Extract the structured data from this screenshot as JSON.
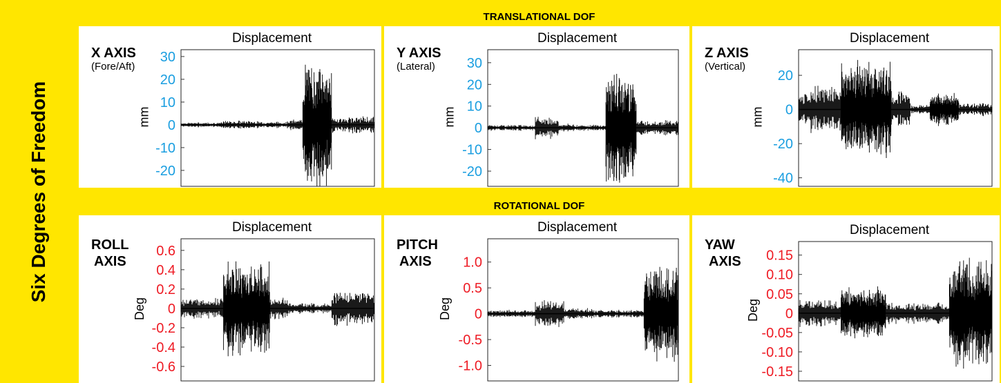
{
  "sidebar": {
    "title": "Six Degrees of Freedom"
  },
  "bands": {
    "translational": "TRANSLATIONAL DOF",
    "rotational": "ROTATIONAL DOF"
  },
  "colors": {
    "yellow": "#ffe600",
    "tick_blue": "#1a9ee0",
    "tick_red": "#ee1b24",
    "signal": "#000000"
  },
  "chart_data": [
    {
      "type": "line",
      "title": "Displacement",
      "axis_name": "X AXIS",
      "axis_sub": "(Fore/Aft)",
      "ylabel": "mm",
      "ylim": [
        -27,
        33
      ],
      "yticks": [
        30,
        20,
        10,
        0,
        -10,
        -20
      ],
      "ytick_labels": [
        "30",
        "20",
        "10",
        "0",
        "-10",
        "-20"
      ],
      "tick_color": "blue",
      "segments": [
        {
          "x0": 0.0,
          "x1": 0.22,
          "amp": 1.2
        },
        {
          "x0": 0.22,
          "x1": 0.4,
          "amp": 2.0
        },
        {
          "x0": 0.4,
          "x1": 0.55,
          "amp": 1.5
        },
        {
          "x0": 0.55,
          "x1": 0.63,
          "amp": 2.5
        },
        {
          "x0": 0.63,
          "x1": 0.78,
          "amp": 30,
          "dense": true
        },
        {
          "x0": 0.78,
          "x1": 0.87,
          "amp": 3.5
        },
        {
          "x0": 0.87,
          "x1": 1.0,
          "amp": 4.0
        }
      ]
    },
    {
      "type": "line",
      "title": "Displacement",
      "axis_name": "Y AXIS",
      "axis_sub": "(Lateral)",
      "ylabel": "mm",
      "ylim": [
        -27,
        36
      ],
      "yticks": [
        30,
        20,
        10,
        0,
        -10,
        -20
      ],
      "ytick_labels": [
        "30",
        "20",
        "10",
        "0",
        "-10",
        "-20"
      ],
      "tick_color": "blue",
      "segments": [
        {
          "x0": 0.0,
          "x1": 0.25,
          "amp": 1.5
        },
        {
          "x0": 0.25,
          "x1": 0.37,
          "amp": 5.5
        },
        {
          "x0": 0.37,
          "x1": 0.45,
          "amp": 2.0
        },
        {
          "x0": 0.45,
          "x1": 0.62,
          "amp": 1.5
        },
        {
          "x0": 0.62,
          "x1": 0.78,
          "amp": 28,
          "dense": true
        },
        {
          "x0": 0.78,
          "x1": 1.0,
          "amp": 4.0
        }
      ]
    },
    {
      "type": "line",
      "title": "Displacement",
      "axis_name": "Z AXIS",
      "axis_sub": "(Vertical)",
      "ylabel": "mm",
      "ylim": [
        -45,
        35
      ],
      "yticks": [
        20,
        0,
        -20,
        -40
      ],
      "ytick_labels": [
        "20",
        "0",
        "-20",
        "-40"
      ],
      "tick_color": "blue",
      "segments": [
        {
          "x0": 0.0,
          "x1": 0.05,
          "amp": 10
        },
        {
          "x0": 0.05,
          "x1": 0.22,
          "amp": 15
        },
        {
          "x0": 0.22,
          "x1": 0.48,
          "amp": 30,
          "dense": true
        },
        {
          "x0": 0.48,
          "x1": 0.58,
          "amp": 12
        },
        {
          "x0": 0.58,
          "x1": 0.68,
          "amp": 3
        },
        {
          "x0": 0.68,
          "x1": 0.83,
          "amp": 10,
          "dense": true
        },
        {
          "x0": 0.83,
          "x1": 1.0,
          "amp": 4
        }
      ]
    },
    {
      "type": "line",
      "title": "Displacement",
      "axis_name": "ROLL",
      "axis_sub2": "AXIS",
      "ylabel": "Deg",
      "ylim": [
        -0.75,
        0.72
      ],
      "yticks": [
        0.6,
        0.4,
        0.2,
        0,
        -0.2,
        -0.4,
        -0.6
      ],
      "ytick_labels": [
        "0.6",
        "0.4",
        "0.2",
        "0",
        "-0.2",
        "-0.4",
        "-0.6"
      ],
      "tick_color": "red",
      "segments": [
        {
          "x0": 0.0,
          "x1": 0.22,
          "amp": 0.12
        },
        {
          "x0": 0.22,
          "x1": 0.46,
          "amp": 0.5,
          "dense": true
        },
        {
          "x0": 0.46,
          "x1": 0.55,
          "amp": 0.12
        },
        {
          "x0": 0.55,
          "x1": 0.78,
          "amp": 0.06
        },
        {
          "x0": 0.78,
          "x1": 1.0,
          "amp": 0.2
        }
      ]
    },
    {
      "type": "line",
      "title": "Displacement",
      "axis_name": "PITCH",
      "axis_sub2": "AXIS",
      "ylabel": "Deg",
      "ylim": [
        -1.3,
        1.45
      ],
      "yticks": [
        1.0,
        0.5,
        0,
        -0.5,
        -1.0
      ],
      "ytick_labels": [
        "1.0",
        "0.5",
        "0",
        "-0.5",
        "-1.0"
      ],
      "tick_color": "red",
      "segments": [
        {
          "x0": 0.0,
          "x1": 0.25,
          "amp": 0.08
        },
        {
          "x0": 0.25,
          "x1": 0.4,
          "amp": 0.3
        },
        {
          "x0": 0.4,
          "x1": 0.55,
          "amp": 0.12
        },
        {
          "x0": 0.55,
          "x1": 0.82,
          "amp": 0.08
        },
        {
          "x0": 0.82,
          "x1": 1.0,
          "amp": 1.0,
          "dense": true
        }
      ]
    },
    {
      "type": "line",
      "title": "Displacement",
      "axis_name": "YAW",
      "axis_sub2": "AXIS",
      "ylabel": "Deg",
      "ylim": [
        -0.175,
        0.185
      ],
      "yticks": [
        0.15,
        0.1,
        0.05,
        0,
        -0.05,
        -0.1,
        -0.15
      ],
      "ytick_labels": [
        "0.15",
        "0.10",
        "0.05",
        "0",
        "-0.05",
        "-0.10",
        "-0.15"
      ],
      "tick_color": "red",
      "segments": [
        {
          "x0": 0.0,
          "x1": 0.22,
          "amp": 0.04
        },
        {
          "x0": 0.22,
          "x1": 0.45,
          "amp": 0.07,
          "dense": true
        },
        {
          "x0": 0.45,
          "x1": 0.55,
          "amp": 0.03
        },
        {
          "x0": 0.55,
          "x1": 0.78,
          "amp": 0.03
        },
        {
          "x0": 0.78,
          "x1": 1.0,
          "amp": 0.15,
          "dense": true
        }
      ]
    }
  ]
}
